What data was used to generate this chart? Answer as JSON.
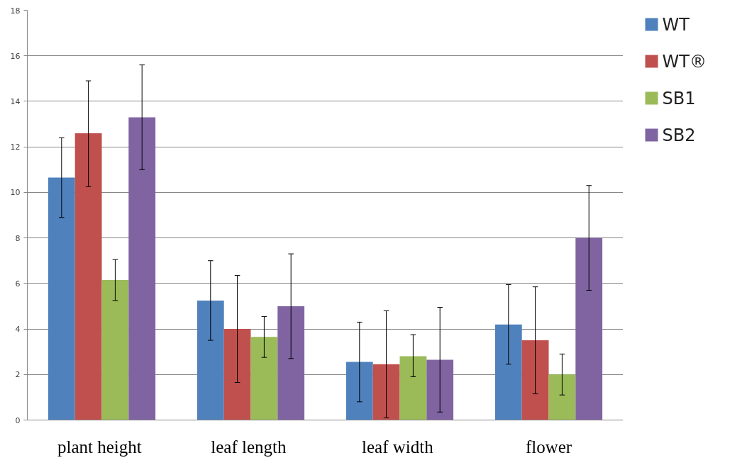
{
  "chart_data": {
    "type": "bar",
    "categories": [
      "plant  height",
      "leaf  length",
      "leaf  width",
      "flower"
    ],
    "series": [
      {
        "name": "WT",
        "color": "#4f81bd",
        "values": [
          10.65,
          5.25,
          2.55,
          4.2
        ],
        "errors": [
          [
            8.9,
            12.4
          ],
          [
            3.5,
            7.0
          ],
          [
            0.8,
            4.3
          ],
          [
            2.45,
            5.95
          ]
        ]
      },
      {
        "name": "WT®",
        "color": "#c0504d",
        "values": [
          12.6,
          4.0,
          2.45,
          3.5
        ],
        "errors": [
          [
            10.25,
            14.9
          ],
          [
            1.65,
            6.35
          ],
          [
            0.1,
            4.8
          ],
          [
            1.15,
            5.85
          ]
        ]
      },
      {
        "name": "SB1",
        "color": "#9bbb59",
        "values": [
          6.15,
          3.65,
          2.8,
          2.0
        ],
        "errors": [
          [
            5.25,
            7.05
          ],
          [
            2.75,
            4.55
          ],
          [
            1.9,
            3.75
          ],
          [
            1.1,
            2.9
          ]
        ]
      },
      {
        "name": "SB2",
        "color": "#8064a2",
        "values": [
          13.3,
          5.0,
          2.65,
          8.0
        ],
        "errors": [
          [
            11.0,
            15.6
          ],
          [
            2.7,
            7.3
          ],
          [
            0.35,
            4.95
          ],
          [
            5.7,
            10.3
          ]
        ]
      }
    ],
    "ylim": [
      0,
      18
    ],
    "yticks": [
      0,
      2,
      4,
      6,
      8,
      10,
      12,
      14,
      16,
      18
    ],
    "grid": "y",
    "legend": "top right"
  }
}
